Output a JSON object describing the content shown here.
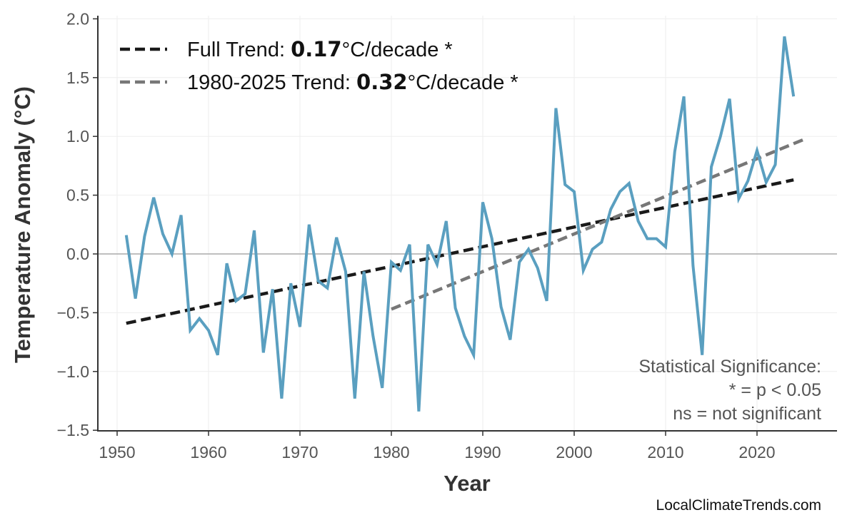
{
  "chart_data": {
    "type": "line",
    "xlabel": "Year",
    "ylabel": "Temperature Anomaly (°C)",
    "xlim": [
      1948,
      2029
    ],
    "ylim": [
      -1.5,
      2.03
    ],
    "xticks": [
      1950,
      1960,
      1970,
      1980,
      1990,
      2000,
      2010,
      2020
    ],
    "yticks": [
      -1.5,
      -1.0,
      -0.5,
      0.0,
      0.5,
      1.0,
      1.5,
      2.0
    ],
    "ytick_labels": [
      "−1.5",
      "−1.0",
      "−0.5",
      "0.0",
      "0.5",
      "1.0",
      "1.5",
      "2.0"
    ],
    "grid": true,
    "zero_line": true,
    "legend_placement": "top-left",
    "colors": {
      "series": "#5a9fc0",
      "full_trend": "#1a1a1a",
      "recent_trend": "#777777",
      "zero_line": "#aaaaaa",
      "grid": "#eeeeee"
    },
    "series": [
      {
        "x": [
          1951,
          1952,
          1953,
          1954,
          1955,
          1956,
          1957,
          1958,
          1959,
          1960,
          1961,
          1962,
          1963,
          1964,
          1965,
          1966,
          1967,
          1968,
          1969,
          1970,
          1971,
          1972,
          1973,
          1974,
          1975,
          1976,
          1977,
          1978,
          1979,
          1980,
          1981,
          1982,
          1983,
          1984,
          1985,
          1986,
          1987,
          1988,
          1989,
          1990,
          1991,
          1992,
          1993,
          1994,
          1995,
          1996,
          1997,
          1998,
          1999,
          2000,
          2001,
          2002,
          2003,
          2004,
          2005,
          2006,
          2007,
          2008,
          2009,
          2010,
          2011,
          2012,
          2013,
          2014,
          2015,
          2016,
          2017,
          2018,
          2019,
          2020,
          2021,
          2022,
          2023,
          2024
        ],
        "y": [
          0.16,
          -0.38,
          0.15,
          0.48,
          0.17,
          0.0,
          0.33,
          -0.65,
          -0.55,
          -0.65,
          -0.86,
          -0.08,
          -0.4,
          -0.34,
          0.2,
          -0.84,
          -0.3,
          -1.23,
          -0.25,
          -0.62,
          0.25,
          -0.23,
          -0.29,
          0.14,
          -0.15,
          -1.23,
          -0.15,
          -0.7,
          -1.14,
          -0.07,
          -0.14,
          0.08,
          -1.34,
          0.08,
          -0.09,
          0.28,
          -0.46,
          -0.7,
          -0.86,
          0.44,
          0.13,
          -0.45,
          -0.73,
          -0.07,
          0.04,
          -0.12,
          -0.4,
          1.24,
          0.59,
          0.53,
          -0.14,
          0.04,
          0.1,
          0.38,
          0.53,
          0.6,
          0.28,
          0.13,
          0.13,
          0.06,
          0.87,
          1.34,
          -0.1,
          -0.86,
          0.74,
          1.0,
          1.32,
          0.47,
          0.62,
          0.88,
          0.61,
          0.76,
          1.85,
          1.34
        ]
      }
    ],
    "trends": [
      {
        "label_prefix": "Full Trend: ",
        "value": "0.17",
        "label_suffix": "°C/decade *",
        "x": [
          1951,
          2024
        ],
        "y": [
          -0.59,
          0.63
        ],
        "style": "dashed"
      },
      {
        "label_prefix": "1980-2025 Trend: ",
        "value": "0.32",
        "label_suffix": "°C/decade *",
        "x": [
          1980,
          2025
        ],
        "y": [
          -0.47,
          0.97
        ],
        "style": "dashed"
      }
    ],
    "annotation": [
      "Statistical Significance:",
      "* = p < 0.05",
      "ns = not significant"
    ]
  },
  "credit": "LocalClimateTrends.com"
}
